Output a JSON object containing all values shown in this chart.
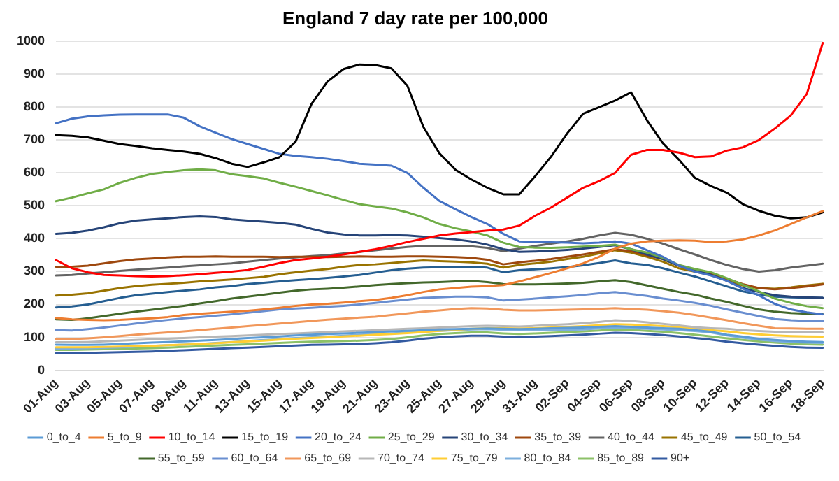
{
  "chart_data": {
    "type": "line",
    "title": "England 7 day rate per 100,000",
    "categories": [
      "01-Aug",
      null,
      "03-Aug",
      null,
      "05-Aug",
      null,
      "07-Aug",
      null,
      "09-Aug",
      null,
      "11-Aug",
      null,
      "13-Aug",
      null,
      "15-Aug",
      null,
      "17-Aug",
      null,
      "19-Aug",
      null,
      "21-Aug",
      null,
      "23-Aug",
      null,
      "25-Aug",
      null,
      "27-Aug",
      null,
      "29-Aug",
      null,
      "31-Aug",
      null,
      "02-Sep",
      null,
      "04-Sep",
      null,
      "06-Sep",
      null,
      "08-Sep",
      null,
      "10-Sep",
      null,
      "12-Sep",
      null,
      "14-Sep",
      null,
      "16-Sep",
      null,
      "18-Sep"
    ],
    "ylim": [
      0,
      1000
    ],
    "yticks": [
      0,
      100,
      200,
      300,
      400,
      500,
      600,
      700,
      800,
      900,
      1000
    ],
    "grid": "y",
    "legend": "bottom",
    "marker": "none",
    "line_style": "solid",
    "series": [
      {
        "name": "0_to_4",
        "color": "#5b9bd5",
        "values": [
          78,
          77,
          77,
          78,
          80,
          82,
          84,
          86,
          88,
          90,
          92,
          95,
          98,
          100,
          103,
          106,
          108,
          110,
          112,
          114,
          116,
          118,
          120,
          122,
          124,
          125,
          126,
          127,
          126,
          125,
          126,
          128,
          129,
          130,
          132,
          134,
          132,
          130,
          128,
          126,
          122,
          117,
          108,
          102,
          96,
          92,
          89,
          87,
          86
        ]
      },
      {
        "name": "5_to_9",
        "color": "#ed7d31",
        "values": [
          159,
          155,
          153,
          152,
          153,
          156,
          158,
          162,
          168,
          172,
          175,
          178,
          181,
          185,
          190,
          196,
          200,
          202,
          206,
          210,
          214,
          220,
          228,
          238,
          246,
          250,
          254,
          256,
          259,
          270,
          283,
          296,
          310,
          325,
          345,
          370,
          385,
          392,
          394,
          395,
          394,
          390,
          392,
          398,
          410,
          425,
          445,
          465,
          484
        ]
      },
      {
        "name": "10_to_14",
        "color": "#ff0000",
        "values": [
          335,
          310,
          298,
          290,
          288,
          286,
          285,
          286,
          289,
          292,
          296,
          300,
          305,
          315,
          326,
          335,
          340,
          345,
          352,
          360,
          368,
          378,
          390,
          400,
          410,
          416,
          420,
          425,
          428,
          440,
          470,
          495,
          525,
          555,
          575,
          600,
          655,
          670,
          670,
          662,
          648,
          650,
          668,
          678,
          700,
          735,
          775,
          840,
          995
        ]
      },
      {
        "name": "15_to_19",
        "color": "#000000",
        "values": [
          715,
          713,
          708,
          698,
          688,
          682,
          675,
          670,
          665,
          658,
          645,
          628,
          618,
          632,
          648,
          695,
          810,
          878,
          916,
          930,
          928,
          918,
          865,
          740,
          660,
          610,
          580,
          555,
          535,
          535,
          590,
          650,
          720,
          780,
          800,
          820,
          845,
          760,
          690,
          640,
          585,
          560,
          540,
          505,
          485,
          470,
          462,
          465,
          480
        ]
      },
      {
        "name": "20_to_24",
        "color": "#4472c4",
        "values": [
          751,
          765,
          772,
          775,
          777,
          778,
          778,
          778,
          768,
          742,
          722,
          703,
          688,
          673,
          658,
          652,
          648,
          643,
          636,
          628,
          625,
          622,
          600,
          555,
          515,
          490,
          466,
          445,
          415,
          392,
          390,
          389,
          388,
          386,
          388,
          392,
          385,
          365,
          345,
          318,
          300,
          288,
          272,
          248,
          228,
          202,
          185,
          176,
          170
        ]
      },
      {
        "name": "25_to_29",
        "color": "#70ad47",
        "values": [
          514,
          525,
          538,
          550,
          570,
          585,
          597,
          603,
          608,
          611,
          608,
          596,
          590,
          583,
          570,
          558,
          545,
          532,
          518,
          505,
          498,
          492,
          480,
          465,
          445,
          432,
          422,
          410,
          388,
          375,
          373,
          372,
          374,
          376,
          378,
          382,
          368,
          358,
          342,
          320,
          308,
          298,
          280,
          260,
          240,
          218,
          205,
          195,
          189
        ]
      },
      {
        "name": "30_to_34",
        "color": "#264478",
        "values": [
          415,
          418,
          425,
          435,
          447,
          455,
          459,
          462,
          466,
          468,
          466,
          459,
          455,
          452,
          448,
          443,
          430,
          419,
          413,
          410,
          410,
          411,
          410,
          406,
          402,
          398,
          392,
          382,
          368,
          360,
          361,
          363,
          366,
          370,
          375,
          380,
          368,
          352,
          338,
          318,
          305,
          290,
          272,
          250,
          238,
          228,
          224,
          222,
          220
        ]
      },
      {
        "name": "35_to_39",
        "color": "#9e480e",
        "values": [
          315,
          315,
          318,
          325,
          332,
          337,
          340,
          343,
          345,
          345,
          346,
          345,
          345,
          345,
          344,
          345,
          345,
          344,
          345,
          346,
          345,
          345,
          346,
          346,
          345,
          344,
          342,
          336,
          322,
          328,
          333,
          338,
          345,
          352,
          360,
          368,
          362,
          350,
          338,
          318,
          305,
          295,
          278,
          262,
          250,
          246,
          250,
          255,
          261
        ]
      },
      {
        "name": "40_to_44",
        "color": "#636363",
        "values": [
          288,
          290,
          294,
          298,
          302,
          306,
          309,
          312,
          316,
          319,
          322,
          325,
          330,
          335,
          340,
          343,
          347,
          350,
          355,
          360,
          365,
          370,
          375,
          378,
          378,
          378,
          377,
          372,
          362,
          370,
          378,
          385,
          392,
          400,
          410,
          418,
          412,
          400,
          385,
          368,
          352,
          335,
          320,
          308,
          300,
          304,
          312,
          318,
          324
        ]
      },
      {
        "name": "45_to_49",
        "color": "#997300",
        "values": [
          227,
          230,
          234,
          242,
          250,
          256,
          260,
          263,
          266,
          270,
          273,
          276,
          280,
          284,
          292,
          298,
          303,
          308,
          315,
          320,
          322,
          326,
          330,
          334,
          332,
          330,
          328,
          324,
          312,
          320,
          325,
          330,
          338,
          345,
          355,
          365,
          358,
          345,
          330,
          310,
          300,
          290,
          275,
          258,
          250,
          248,
          252,
          258,
          263
        ]
      },
      {
        "name": "50_to_54",
        "color": "#255e91",
        "values": [
          191,
          194,
          200,
          210,
          220,
          228,
          233,
          238,
          242,
          246,
          252,
          256,
          262,
          266,
          270,
          274,
          277,
          281,
          285,
          290,
          297,
          304,
          309,
          312,
          313,
          315,
          315,
          312,
          298,
          304,
          307,
          310,
          314,
          319,
          326,
          334,
          325,
          320,
          310,
          297,
          285,
          270,
          255,
          240,
          230,
          224,
          222,
          221,
          220
        ]
      },
      {
        "name": "55_to_59",
        "color": "#43682b",
        "values": [
          155,
          153,
          158,
          165,
          172,
          178,
          184,
          190,
          196,
          203,
          210,
          218,
          224,
          230,
          236,
          242,
          246,
          248,
          251,
          255,
          259,
          262,
          265,
          267,
          268,
          270,
          272,
          268,
          262,
          261,
          261,
          262,
          264,
          266,
          270,
          274,
          268,
          258,
          248,
          238,
          230,
          218,
          208,
          196,
          185,
          178,
          174,
          172,
          170
        ]
      },
      {
        "name": "60_to_64",
        "color": "#698ed0",
        "values": [
          122,
          121,
          125,
          130,
          136,
          142,
          148,
          153,
          158,
          162,
          166,
          170,
          175,
          180,
          185,
          188,
          190,
          193,
          196,
          200,
          205,
          210,
          215,
          220,
          222,
          224,
          224,
          222,
          212,
          215,
          218,
          222,
          225,
          229,
          234,
          238,
          232,
          226,
          218,
          212,
          205,
          196,
          185,
          175,
          165,
          156,
          152,
          150,
          150
        ]
      },
      {
        "name": "65_to_69",
        "color": "#f1975a",
        "values": [
          95,
          95,
          97,
          100,
          104,
          108,
          112,
          115,
          118,
          122,
          126,
          130,
          134,
          138,
          142,
          146,
          150,
          154,
          157,
          160,
          163,
          168,
          173,
          178,
          182,
          186,
          189,
          188,
          184,
          182,
          182,
          183,
          184,
          185,
          187,
          189,
          186,
          184,
          180,
          175,
          168,
          160,
          152,
          143,
          135,
          128,
          127,
          126,
          126
        ]
      },
      {
        "name": "70_to_74",
        "color": "#b7b7b7",
        "values": [
          85,
          85,
          86,
          88,
          90,
          92,
          94,
          96,
          98,
          100,
          102,
          104,
          106,
          108,
          110,
          112,
          114,
          116,
          118,
          120,
          122,
          124,
          126,
          128,
          130,
          132,
          134,
          135,
          134,
          133,
          135,
          138,
          140,
          143,
          147,
          152,
          150,
          146,
          141,
          136,
          131,
          128,
          126,
          122,
          119,
          117,
          116,
          115,
          115
        ]
      },
      {
        "name": "75_to_79",
        "color": "#ffcd33",
        "values": [
          70,
          70,
          70,
          71,
          72,
          73,
          74,
          76,
          78,
          80,
          82,
          85,
          88,
          90,
          93,
          96,
          98,
          100,
          103,
          105,
          108,
          110,
          113,
          116,
          120,
          123,
          126,
          128,
          128,
          127,
          128,
          130,
          132,
          134,
          137,
          140,
          139,
          137,
          134,
          131,
          127,
          122,
          118,
          113,
          109,
          106,
          104,
          103,
          102
        ]
      },
      {
        "name": "80_to_84",
        "color": "#7cafdd",
        "values": [
          66,
          66,
          67,
          68,
          70,
          72,
          74,
          76,
          78,
          80,
          83,
          86,
          89,
          92,
          95,
          98,
          100,
          102,
          105,
          108,
          110,
          112,
          115,
          118,
          120,
          122,
          124,
          125,
          123,
          122,
          123,
          123,
          123,
          124,
          127,
          130,
          128,
          126,
          124,
          122,
          119,
          115,
          106,
          99,
          93,
          89,
          86,
          84,
          83
        ]
      },
      {
        "name": "85_to_89",
        "color": "#8cc168",
        "values": [
          62,
          62,
          63,
          64,
          65,
          66,
          67,
          69,
          71,
          73,
          75,
          77,
          79,
          81,
          83,
          85,
          87,
          88,
          89,
          90,
          92,
          95,
          100,
          106,
          110,
          113,
          115,
          115,
          112,
          110,
          112,
          114,
          116,
          118,
          121,
          124,
          123,
          120,
          117,
          113,
          108,
          103,
          97,
          92,
          88,
          84,
          81,
          79,
          78
        ]
      },
      {
        "name": "90+",
        "color": "#335aa1",
        "values": [
          52,
          52,
          53,
          54,
          55,
          56,
          57,
          59,
          61,
          63,
          65,
          67,
          69,
          71,
          73,
          75,
          77,
          78,
          79,
          80,
          82,
          85,
          90,
          96,
          100,
          103,
          105,
          105,
          102,
          100,
          102,
          104,
          106,
          108,
          111,
          114,
          113,
          110,
          107,
          103,
          98,
          93,
          87,
          82,
          78,
          74,
          71,
          69,
          68
        ]
      }
    ]
  }
}
